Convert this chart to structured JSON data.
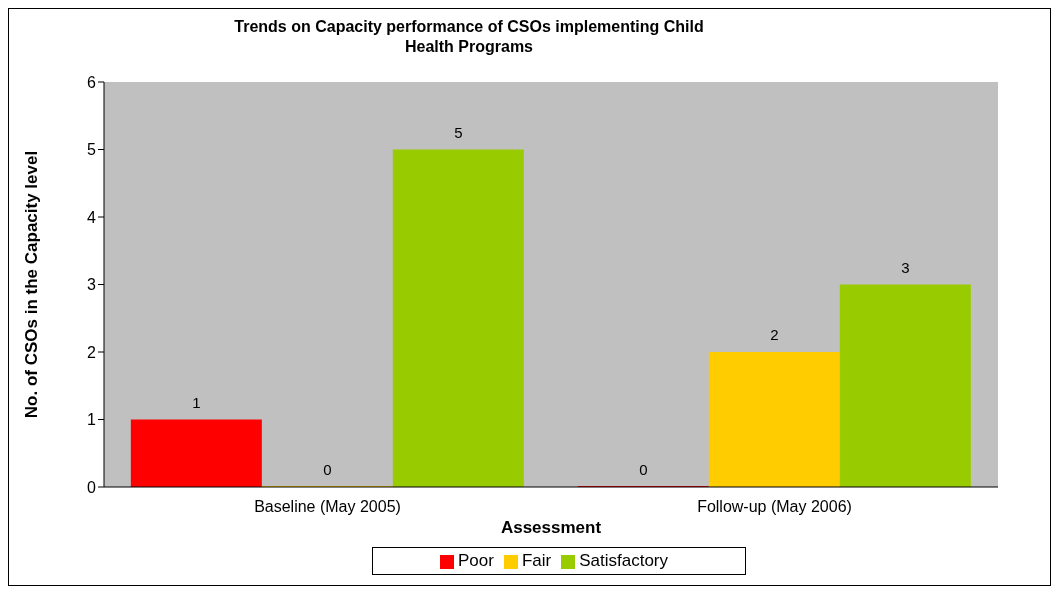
{
  "chart_data": {
    "type": "bar",
    "title": "Trends on Capacity performance of CSOs implementing Child Health Programs",
    "xlabel": "Assessment",
    "ylabel": "No. of CSOs in the Capacity level",
    "categories": [
      "Baseline (May 2005)",
      "Follow-up (May 2006)"
    ],
    "series": [
      {
        "name": "Poor",
        "color": "#ff0000",
        "values": [
          1,
          0
        ]
      },
      {
        "name": "Fair",
        "color": "#ffcc00",
        "values": [
          0,
          2
        ]
      },
      {
        "name": "Satisfactory",
        "color": "#99cc00",
        "values": [
          5,
          3
        ]
      }
    ],
    "ylim": [
      0,
      6
    ],
    "yticks": [
      0,
      1,
      2,
      3,
      4,
      5,
      6
    ],
    "legend": "bottom",
    "data_labels": true
  }
}
